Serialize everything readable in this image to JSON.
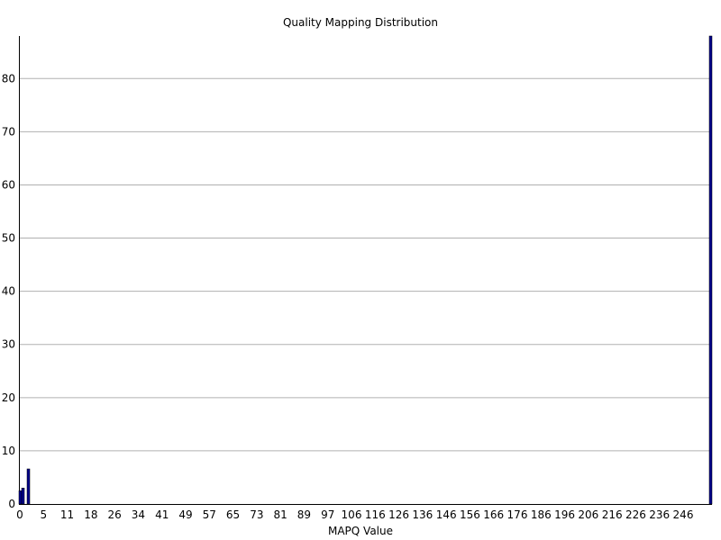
{
  "chart_data": {
    "type": "bar",
    "title": "Quality Mapping Distribution",
    "xlabel": "MAPQ Value",
    "ylabel": "",
    "x_tick_labels": [
      "0",
      "5",
      "11",
      "18",
      "26",
      "34",
      "41",
      "49",
      "57",
      "65",
      "73",
      "81",
      "89",
      "97",
      "106",
      "116",
      "126",
      "136",
      "146",
      "156",
      "166",
      "176",
      "186",
      "196",
      "206",
      "216",
      "226",
      "236",
      "246"
    ],
    "y_ticks": [
      0,
      10,
      20,
      30,
      40,
      50,
      60,
      70,
      80
    ],
    "ylim": [
      0,
      88
    ],
    "grid": true,
    "legend": "none",
    "bar_color": "#00008b",
    "bars": [
      {
        "mapq": 0,
        "value": 2.5
      },
      {
        "mapq": 1,
        "value": 3.0
      },
      {
        "mapq": 3,
        "value": 6.6
      },
      {
        "mapq": 255,
        "value": 88
      }
    ],
    "x_categories_last": 255
  }
}
